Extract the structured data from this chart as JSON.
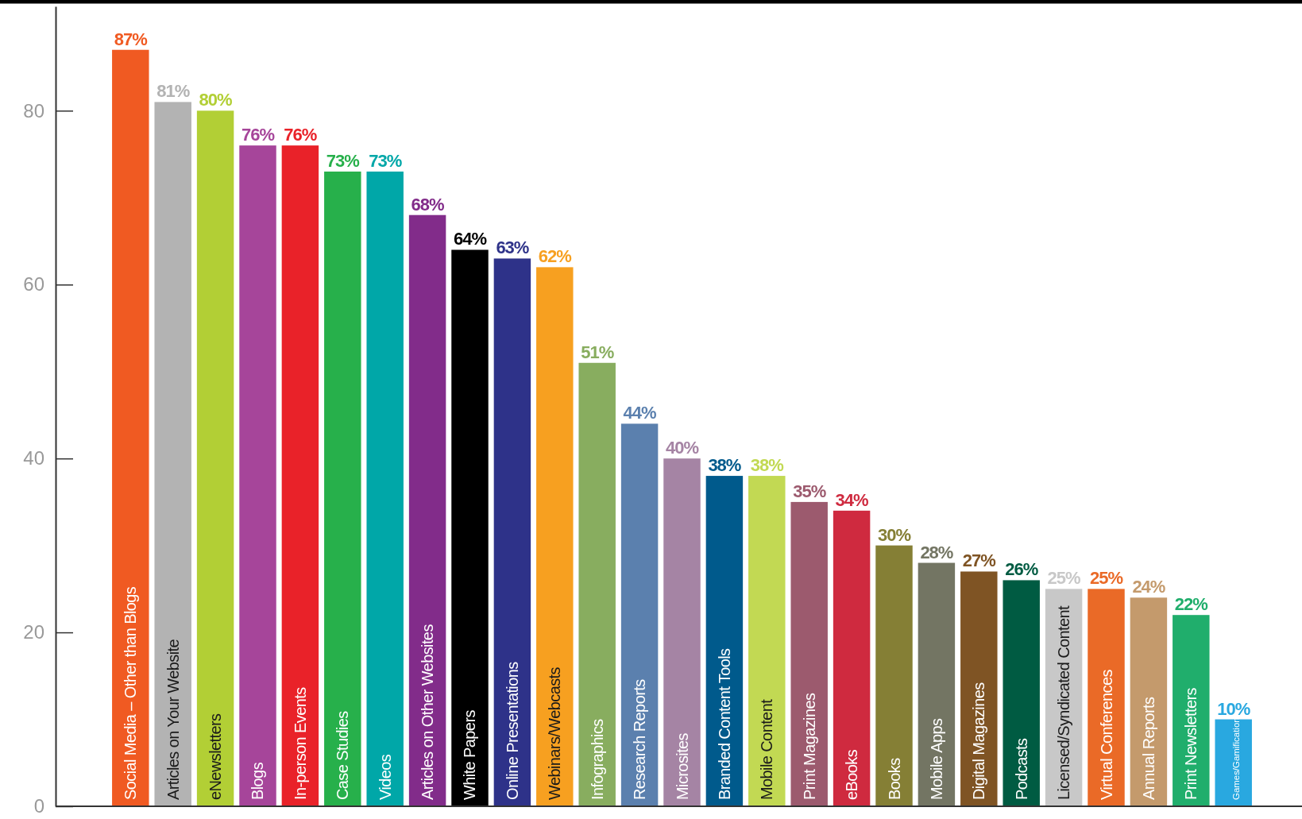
{
  "chart_data": {
    "type": "bar",
    "categories": [
      "Social Media – Other than Blogs",
      "Articles on Your Website",
      "eNewsletters",
      "Blogs",
      "In-person Events",
      "Case Studies",
      "Videos",
      "Articles on Other Websites",
      "White Papers",
      "Online Presentations",
      "Webinars/Webcasts",
      "Infographics",
      "Research Reports",
      "Microsites",
      "Branded Content Tools",
      "Mobile Content",
      "Print Magazines",
      "eBooks",
      "Books",
      "Mobile Apps",
      "Digital Magazines",
      "Podcasts",
      "Licensed/Syndicated Content",
      "Virtual Conferences",
      "Annual Reports",
      "Print Newsletters",
      "Games/Gamification"
    ],
    "values": [
      87,
      81,
      80,
      76,
      76,
      73,
      73,
      68,
      64,
      63,
      62,
      51,
      44,
      40,
      38,
      38,
      35,
      34,
      30,
      28,
      27,
      26,
      25,
      25,
      24,
      22,
      10
    ],
    "value_labels": [
      "87%",
      "81%",
      "80%",
      "76%",
      "76%",
      "73%",
      "73%",
      "68%",
      "64%",
      "63%",
      "62%",
      "51%",
      "44%",
      "40%",
      "38%",
      "38%",
      "35%",
      "34%",
      "30%",
      "28%",
      "27%",
      "26%",
      "25%",
      "25%",
      "24%",
      "22%",
      "10%"
    ],
    "colors": [
      "#f05a22",
      "#b3b3b3",
      "#b2cf35",
      "#a6459a",
      "#e92229",
      "#27b04b",
      "#00a7a8",
      "#822c8a",
      "#000000",
      "#2e3289",
      "#f7a020",
      "#88ad5f",
      "#5b80ae",
      "#a584a4",
      "#005a8c",
      "#c2d953",
      "#9c5a6e",
      "#cf2a3f",
      "#857f35",
      "#737563",
      "#7f5424",
      "#005b42",
      "#c8c8c8",
      "#ea6a27",
      "#c49a6c",
      "#20ae6c",
      "#29a8e0"
    ],
    "ylim": [
      0,
      92
    ],
    "yticks": [
      0,
      20,
      40,
      60,
      80
    ]
  }
}
